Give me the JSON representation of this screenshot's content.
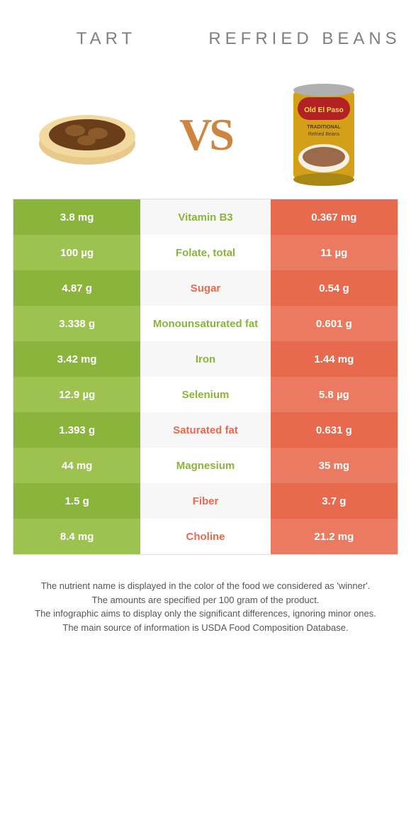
{
  "colors": {
    "left_primary": "#8bb43d",
    "left_alt": "#9dc24f",
    "right_primary": "#e86a4e",
    "right_alt": "#ea7b61",
    "mid_bg_even": "#f7f7f7",
    "mid_bg_odd": "#ffffff",
    "title_text": "#808080",
    "vs_text": "#cd853f",
    "footer_text": "#555555",
    "nutrient_left": "#8bb43d",
    "nutrient_right": "#e86a4e"
  },
  "foods": {
    "left": {
      "title": "TART"
    },
    "right": {
      "title": "REFRIED BEANS"
    }
  },
  "vs": "VS",
  "rows": [
    {
      "nutrient": "Vitamin B3",
      "left": "3.8 mg",
      "right": "0.367 mg",
      "winner": "left"
    },
    {
      "nutrient": "Folate, total",
      "left": "100 µg",
      "right": "11 µg",
      "winner": "left"
    },
    {
      "nutrient": "Sugar",
      "left": "4.87 g",
      "right": "0.54 g",
      "winner": "right"
    },
    {
      "nutrient": "Monounsaturated fat",
      "left": "3.338 g",
      "right": "0.601 g",
      "winner": "left"
    },
    {
      "nutrient": "Iron",
      "left": "3.42 mg",
      "right": "1.44 mg",
      "winner": "left"
    },
    {
      "nutrient": "Selenium",
      "left": "12.9 µg",
      "right": "5.8 µg",
      "winner": "left"
    },
    {
      "nutrient": "Saturated fat",
      "left": "1.393 g",
      "right": "0.631 g",
      "winner": "right"
    },
    {
      "nutrient": "Magnesium",
      "left": "44 mg",
      "right": "35 mg",
      "winner": "left"
    },
    {
      "nutrient": "Fiber",
      "left": "1.5 g",
      "right": "3.7 g",
      "winner": "right"
    },
    {
      "nutrient": "Choline",
      "left": "8.4 mg",
      "right": "21.2 mg",
      "winner": "right"
    }
  ],
  "footer": {
    "l1": "The nutrient name is displayed in the color of the food we considered as 'winner'.",
    "l2": "The amounts are specified per 100 gram of the product.",
    "l3": "The infographic aims to display only the significant differences, ignoring minor ones.",
    "l4": "The main source of information is USDA Food Composition Database."
  }
}
